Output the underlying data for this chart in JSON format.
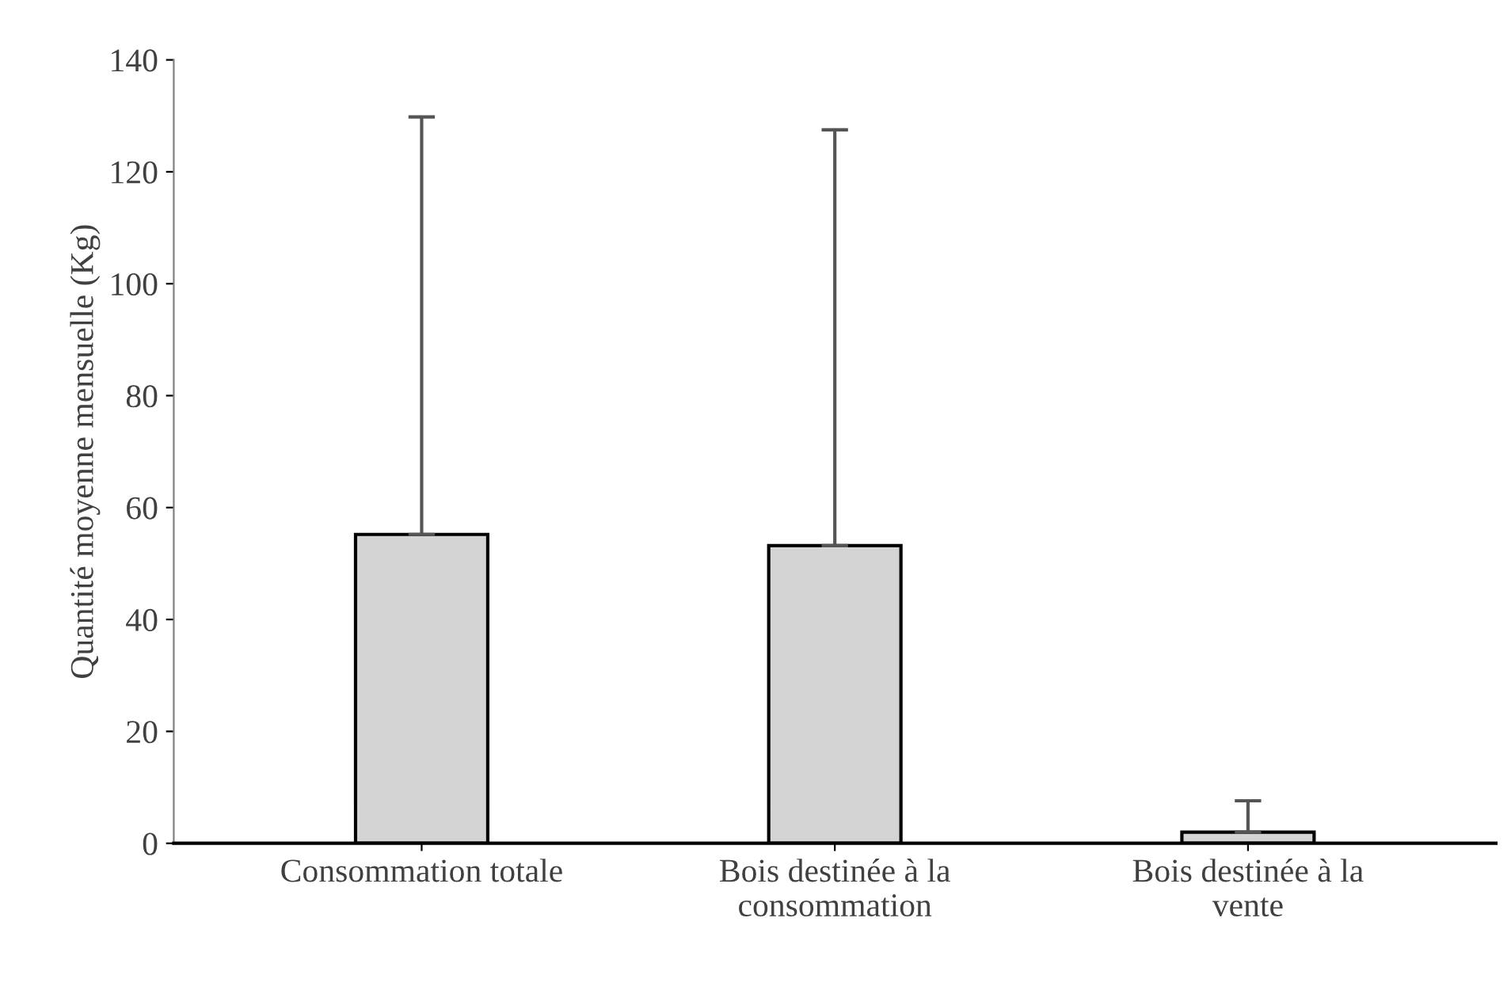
{
  "chart_data": {
    "type": "bar",
    "ylabel": "Quantité moyenne mensuelle (Kg)",
    "categories": [
      "Consommation totale",
      "Bois destinée à la\nconsommation",
      "Bois destinée à la\nvente"
    ],
    "values": [
      55.2,
      53.2,
      2
    ],
    "errors": [
      [
        55.2,
        129.8
      ],
      [
        53.2,
        127.5
      ],
      [
        2,
        7.6
      ]
    ],
    "color": "#d4d4d4",
    "ylim": [
      0,
      140
    ],
    "yticks": [
      0,
      20,
      40,
      60,
      80,
      100,
      120,
      140
    ],
    "grid": false
  }
}
